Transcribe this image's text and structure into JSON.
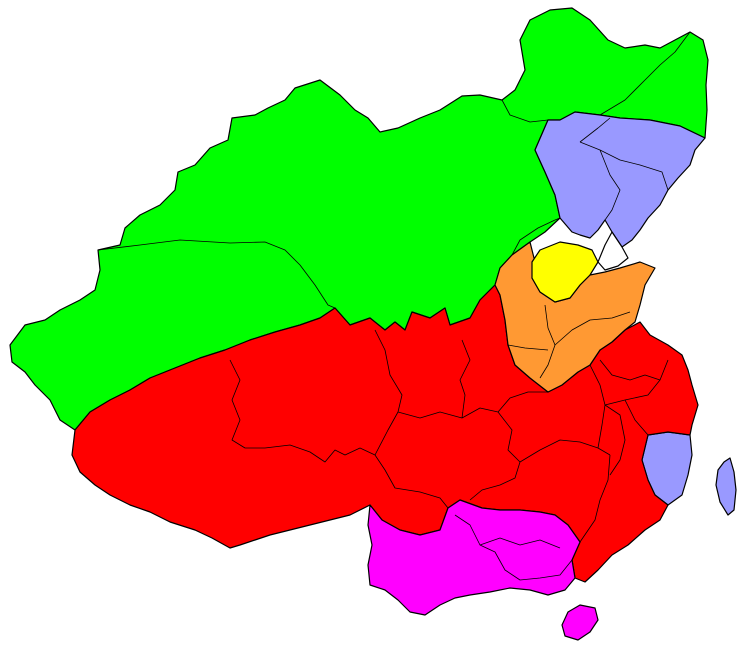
{
  "map": {
    "background": "#ffffff",
    "border_color": "#000000",
    "region_colors": {
      "north_green": "#00ff00",
      "coastal_lavender": "#9999ff",
      "yellow": "#ffff00",
      "orange": "#ff9933",
      "south_red": "#ff0000",
      "southwest_magenta": "#ff00ff"
    }
  }
}
